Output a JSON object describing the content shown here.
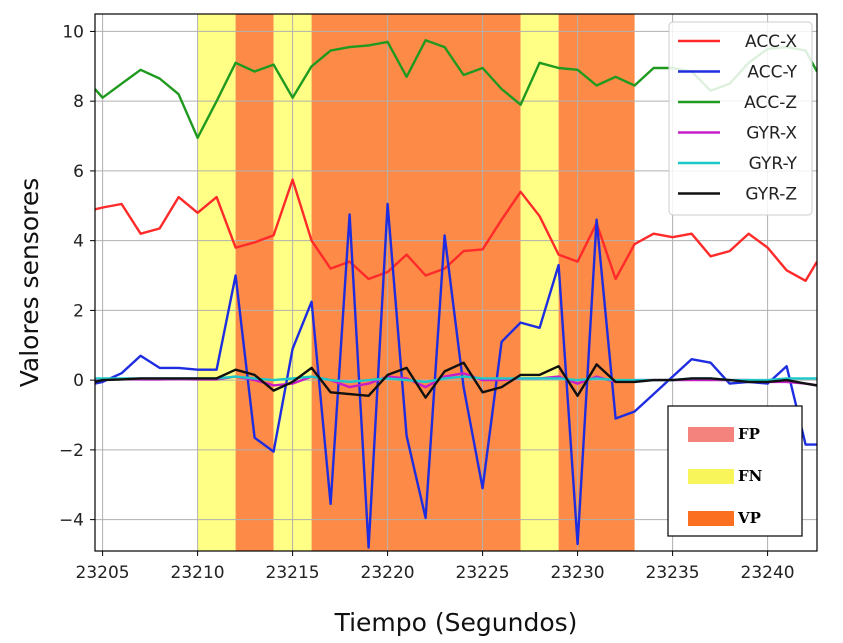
{
  "chart_data": {
    "type": "line",
    "xlabel": "Tiempo (Segundos)",
    "ylabel": "Valores sensores",
    "xlim": [
      23204.6,
      23242.6
    ],
    "ylim": [
      -4.9,
      10.5
    ],
    "xticks": [
      23205,
      23210,
      23215,
      23220,
      23225,
      23230,
      23235,
      23240
    ],
    "yticks": [
      -4,
      -2,
      0,
      2,
      4,
      6,
      8,
      10
    ],
    "ytick_labels": [
      "−4",
      "−2",
      "0",
      "2",
      "4",
      "6",
      "8",
      "10"
    ],
    "grid": true,
    "legend_placement": "top-right",
    "regions": [
      {
        "label": "FN",
        "start": 23210,
        "end": 23212
      },
      {
        "label": "VP",
        "start": 23212,
        "end": 23214
      },
      {
        "label": "FN",
        "start": 23214,
        "end": 23216
      },
      {
        "label": "VP",
        "start": 23216,
        "end": 23227
      },
      {
        "label": "FN",
        "start": 23227,
        "end": 23229
      },
      {
        "label": "VP",
        "start": 23229,
        "end": 23233
      }
    ],
    "region_legend": [
      {
        "label": "FP",
        "color": "#f4837d"
      },
      {
        "label": "FN",
        "color": "#f8f55a"
      },
      {
        "label": "VP",
        "color": "#fb6f21"
      }
    ],
    "region_colors": {
      "FN": "#ffff85",
      "VP": "#fd8a47",
      "FP": "#f4837d"
    },
    "x": [
      23204.6,
      23205,
      23206,
      23207,
      23208,
      23209,
      23210,
      23211,
      23212,
      23213,
      23214,
      23215,
      23216,
      23217,
      23218,
      23219,
      23220,
      23221,
      23222,
      23223,
      23224,
      23225,
      23226,
      23227,
      23228,
      23229,
      23230,
      23231,
      23232,
      23233,
      23234,
      23235,
      23236,
      23237,
      23238,
      23239,
      23240,
      23241,
      23242,
      23242.6
    ],
    "series": [
      {
        "name": "ACC-X",
        "color": "#ff2a2a",
        "values": [
          4.9,
          4.95,
          5.05,
          4.2,
          4.35,
          5.25,
          4.8,
          5.25,
          3.8,
          3.95,
          4.15,
          5.75,
          4.0,
          3.2,
          3.4,
          2.9,
          3.1,
          3.6,
          3.0,
          3.2,
          3.7,
          3.75,
          4.6,
          5.4,
          4.7,
          3.6,
          3.4,
          4.5,
          2.9,
          3.9,
          4.2,
          4.1,
          4.2,
          3.55,
          3.7,
          4.2,
          3.8,
          3.15,
          2.85,
          3.4
        ]
      },
      {
        "name": "ACC-Y",
        "color": "#1e2de0",
        "values": [
          -0.1,
          -0.05,
          0.2,
          0.7,
          0.35,
          0.35,
          0.3,
          0.3,
          3.0,
          -1.65,
          -2.05,
          0.9,
          2.25,
          -3.55,
          4.75,
          -4.8,
          5.05,
          -1.6,
          -3.95,
          4.15,
          -0.2,
          -3.1,
          1.1,
          1.65,
          1.5,
          3.3,
          -4.7,
          4.6,
          -1.1,
          -0.9,
          -0.4,
          0.1,
          0.6,
          0.5,
          -0.1,
          -0.05,
          -0.1,
          0.4,
          -1.85,
          -1.85
        ]
      },
      {
        "name": "ACC-Z",
        "color": "#1f9a1f",
        "values": [
          8.35,
          8.1,
          8.5,
          8.9,
          8.65,
          8.2,
          6.95,
          8.0,
          9.1,
          8.85,
          9.05,
          8.1,
          9.0,
          9.45,
          9.55,
          9.6,
          9.7,
          8.7,
          9.75,
          9.55,
          8.75,
          8.95,
          8.35,
          7.9,
          9.1,
          8.95,
          8.9,
          8.45,
          8.7,
          8.45,
          8.95,
          8.95,
          8.85,
          8.3,
          8.5,
          9.1,
          9.5,
          9.55,
          9.45,
          8.85
        ]
      },
      {
        "name": "GYR-X",
        "color": "#c81ec8",
        "values": [
          0.0,
          0.0,
          0.03,
          0.02,
          0.02,
          0.03,
          0.02,
          0.02,
          0.1,
          0.0,
          -0.15,
          -0.1,
          0.1,
          0.0,
          -0.2,
          -0.1,
          0.1,
          0.05,
          -0.2,
          0.1,
          0.2,
          0.0,
          0.0,
          0.05,
          0.05,
          0.1,
          -0.1,
          0.1,
          -0.05,
          0.0,
          0.0,
          0.0,
          0.0,
          0.0,
          0.0,
          0.0,
          -0.05,
          -0.05,
          -0.1,
          -0.15
        ]
      },
      {
        "name": "GYR-Y",
        "color": "#1ec8c8",
        "values": [
          0.05,
          0.05,
          0.05,
          0.05,
          0.05,
          0.05,
          0.05,
          0.05,
          0.1,
          0.05,
          0.0,
          0.05,
          0.1,
          0.0,
          -0.05,
          0.0,
          0.05,
          0.0,
          -0.05,
          0.05,
          0.1,
          0.05,
          0.05,
          0.05,
          0.05,
          0.05,
          0.0,
          0.05,
          0.0,
          0.0,
          0.0,
          0.0,
          0.05,
          0.05,
          0.0,
          0.0,
          0.0,
          0.05,
          0.05,
          0.05
        ]
      },
      {
        "name": "GYR-Z",
        "color": "#111111",
        "values": [
          -0.05,
          0.0,
          0.02,
          0.05,
          0.05,
          0.05,
          0.05,
          0.05,
          0.3,
          0.15,
          -0.3,
          -0.05,
          0.35,
          -0.35,
          -0.4,
          -0.45,
          0.15,
          0.35,
          -0.5,
          0.25,
          0.5,
          -0.35,
          -0.2,
          0.15,
          0.15,
          0.4,
          -0.45,
          0.45,
          -0.05,
          -0.05,
          0.0,
          0.0,
          0.05,
          0.05,
          0.0,
          -0.05,
          -0.05,
          0.0,
          -0.1,
          -0.15
        ]
      }
    ]
  }
}
